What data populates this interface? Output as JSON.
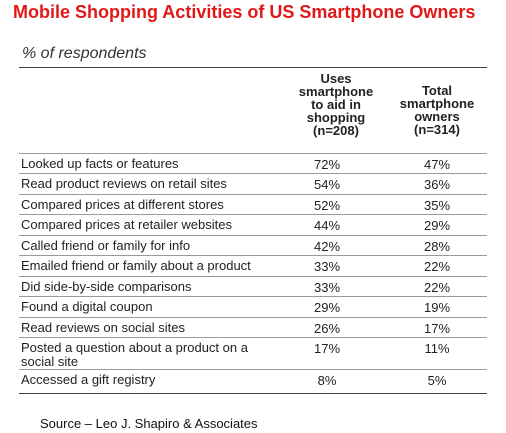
{
  "chart_data": {
    "type": "table",
    "title": "Mobile Shopping Activities of US Smartphone Owners",
    "subtitle": "% of respondents",
    "columns": [
      "Uses smartphone to aid in shopping (n=208)",
      "Total smartphone owners (n=314)"
    ],
    "column_header_lines": [
      [
        "Uses",
        "smartphone",
        "to aid in",
        "shopping",
        "(n=208)"
      ],
      [
        "Total",
        "smartphone",
        "owners",
        "(n=314)"
      ]
    ],
    "rows": [
      {
        "label": "Looked up facts or features",
        "values": [
          "72%",
          "47%"
        ]
      },
      {
        "label": "Read product reviews on retail sites",
        "values": [
          "54%",
          "36%"
        ]
      },
      {
        "label": "Compared prices at different stores",
        "values": [
          "52%",
          "35%"
        ]
      },
      {
        "label": "Compared prices at retailer websites",
        "values": [
          "44%",
          "29%"
        ]
      },
      {
        "label": "Called friend or family for info",
        "values": [
          "42%",
          "28%"
        ]
      },
      {
        "label": "Emailed friend or family about a product",
        "values": [
          "33%",
          "22%"
        ]
      },
      {
        "label": "Did side-by-side comparisons",
        "values": [
          "33%",
          "22%"
        ]
      },
      {
        "label": "Found a digital coupon",
        "values": [
          "29%",
          "19%"
        ]
      },
      {
        "label": "Read reviews on social sites",
        "values": [
          "26%",
          "17%"
        ]
      },
      {
        "label": "Posted a question about a product on a social site",
        "values": [
          "17%",
          "11%"
        ]
      },
      {
        "label": "Accessed a gift registry",
        "values": [
          "8%",
          "5%"
        ]
      }
    ],
    "source": "Source – Leo J. Shapiro & Associates"
  },
  "colors": {
    "title": "#e01818",
    "text": "#222222",
    "rule": "#444444",
    "row_divider": "#9a9a9a"
  }
}
